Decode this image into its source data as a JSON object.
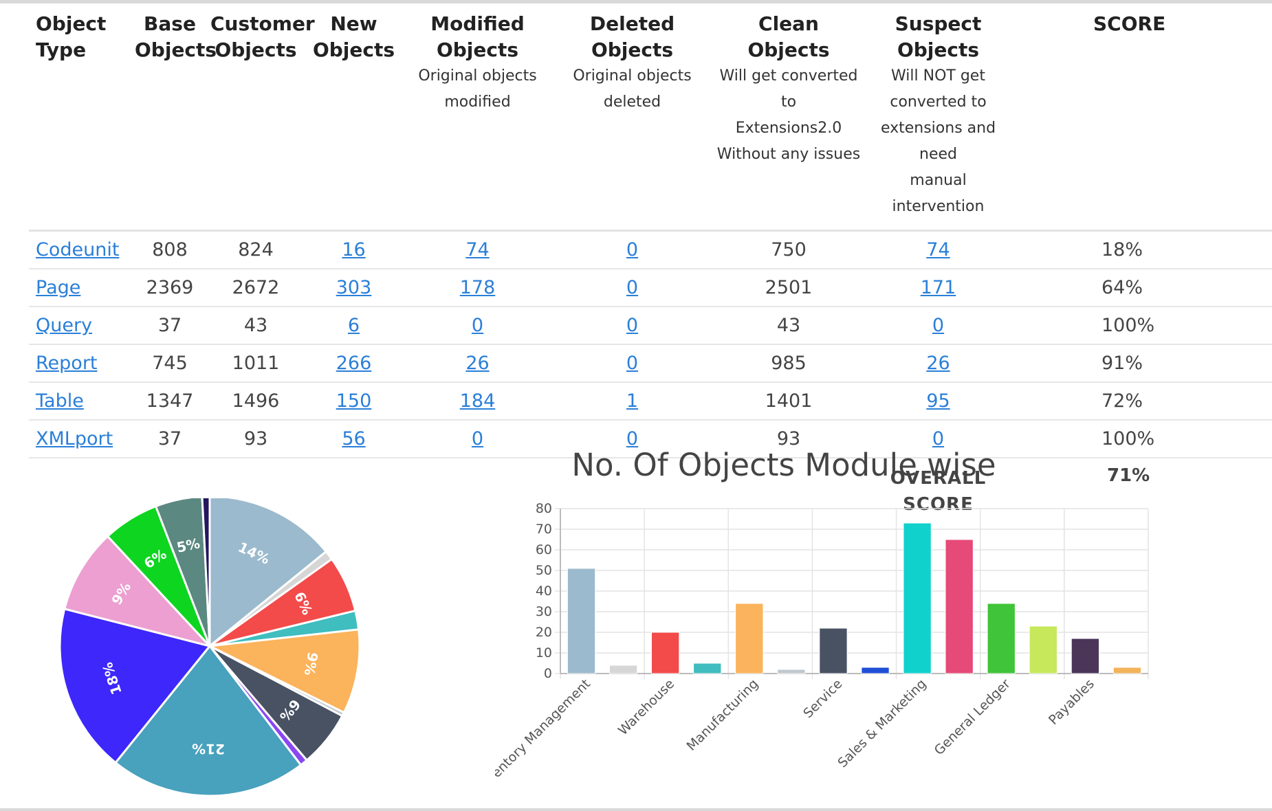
{
  "table": {
    "headers": [
      {
        "title": "Object Type",
        "sub": []
      },
      {
        "title": "Base Objects",
        "sub": []
      },
      {
        "title": "Customer Objects",
        "sub": []
      },
      {
        "title": "New Objects",
        "sub": []
      },
      {
        "title": "Modified Objects",
        "sub": [
          "Original objects",
          "modified"
        ]
      },
      {
        "title": "Deleted Objects",
        "sub": [
          "Original objects",
          "deleted"
        ]
      },
      {
        "title": "Clean Objects",
        "sub": [
          "Will get converted to",
          "Extensions2.0",
          "Without any issues"
        ]
      },
      {
        "title": "Suspect Objects",
        "sub": [
          "Will NOT get",
          "converted to",
          "extensions and need",
          "manual intervention"
        ]
      },
      {
        "title": "SCORE",
        "sub": []
      }
    ],
    "rows": [
      {
        "type": "Codeunit",
        "base": "808",
        "customer": "824",
        "new": "16",
        "modified": "74",
        "deleted": "0",
        "clean": "750",
        "suspect": "74",
        "score": "18%"
      },
      {
        "type": "Page",
        "base": "2369",
        "customer": "2672",
        "new": "303",
        "modified": "178",
        "deleted": "0",
        "clean": "2501",
        "suspect": "171",
        "score": "64%"
      },
      {
        "type": "Query",
        "base": "37",
        "customer": "43",
        "new": "6",
        "modified": "0",
        "deleted": "0",
        "clean": "43",
        "suspect": "0",
        "score": "100%"
      },
      {
        "type": "Report",
        "base": "745",
        "customer": "1011",
        "new": "266",
        "modified": "26",
        "deleted": "0",
        "clean": "985",
        "suspect": "26",
        "score": "91%"
      },
      {
        "type": "Table",
        "base": "1347",
        "customer": "1496",
        "new": "150",
        "modified": "184",
        "deleted": "1",
        "clean": "1401",
        "suspect": "95",
        "score": "72%"
      },
      {
        "type": "XMLport",
        "base": "37",
        "customer": "93",
        "new": "56",
        "modified": "0",
        "deleted": "0",
        "clean": "93",
        "suspect": "0",
        "score": "100%"
      }
    ],
    "overall_label": [
      "OVERALL",
      "SCORE"
    ],
    "overall_value": "71%",
    "link_color": "#2a7fd8"
  },
  "chart_data": [
    {
      "type": "pie",
      "title": "",
      "slices": [
        {
          "label": "14%",
          "value": 14,
          "color": "#9bbacd"
        },
        {
          "label": "1%",
          "value": 1,
          "color": "#d6d6d6"
        },
        {
          "label": "6%",
          "value": 6,
          "color": "#f34a4a"
        },
        {
          "label": "2%",
          "value": 2,
          "color": "#3fbdbf"
        },
        {
          "label": "9%",
          "value": 9,
          "color": "#fbb35c"
        },
        {
          "label": "0%",
          "value": 0.4,
          "color": "#c0c7cd"
        },
        {
          "label": "6%",
          "value": 6,
          "color": "#485263"
        },
        {
          "label": "1%",
          "value": 0.8,
          "color": "#8a47f0"
        },
        {
          "label": "21%",
          "value": 21,
          "color": "#48a1bd"
        },
        {
          "label": "18%",
          "value": 18,
          "color": "#3d27fa"
        },
        {
          "label": "9%",
          "value": 9,
          "color": "#ec9fd0"
        },
        {
          "label": "6%",
          "value": 6,
          "color": "#0dd520"
        },
        {
          "label": "5%",
          "value": 5,
          "color": "#5b8880"
        },
        {
          "label": "1%",
          "value": 0.8,
          "color": "#24165f"
        }
      ]
    },
    {
      "type": "bar",
      "title": "No. Of Objects Module wise",
      "ylim": [
        0,
        80
      ],
      "yticks": [
        0,
        10,
        20,
        30,
        40,
        50,
        60,
        70,
        80
      ],
      "grid": true,
      "labeled_categories": [
        "Inventory Management",
        "Warehouse",
        "Manufacturing",
        "Service",
        "Sales & Marketing",
        "General Ledger",
        "Payables"
      ],
      "values": [
        51,
        4,
        20,
        5,
        34,
        2,
        22,
        3,
        73,
        65,
        34,
        23,
        17,
        3
      ],
      "colors": [
        "#9bbacd",
        "#d6d6d6",
        "#f34a4a",
        "#3fbdbf",
        "#fbb35c",
        "#c0c7cd",
        "#485263",
        "#1f4fd6",
        "#10d1cc",
        "#e54a78",
        "#40c43a",
        "#c6e85a",
        "#4b3658",
        "#f2b35a"
      ]
    }
  ]
}
